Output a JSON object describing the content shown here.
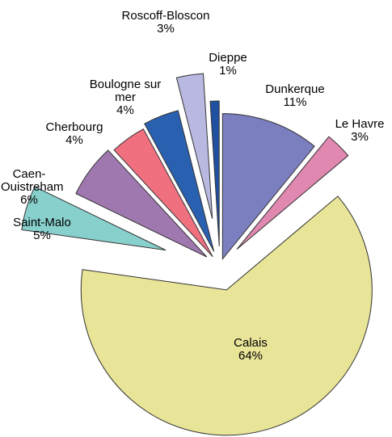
{
  "chart_data": {
    "type": "pie",
    "categories": [
      "Dunkerque",
      "Le Havre",
      "Calais",
      "Saint-Malo",
      "Caen-Ouistreham",
      "Cherbourg",
      "Boulogne sur mer",
      "Roscoff-Bloscon",
      "Dieppe"
    ],
    "values": [
      11,
      3,
      64,
      5,
      6,
      4,
      4,
      3,
      1
    ],
    "value_labels": [
      "11%",
      "3%",
      "64%",
      "5%",
      "6%",
      "4%",
      "4%",
      "3%",
      "1%"
    ],
    "colors": [
      "#7b7fc0",
      "#e088b0",
      "#e8e498",
      "#88d0cc",
      "#a078b0",
      "#f07080",
      "#2a60b0",
      "#b8b8e0",
      "#2050a0"
    ]
  }
}
